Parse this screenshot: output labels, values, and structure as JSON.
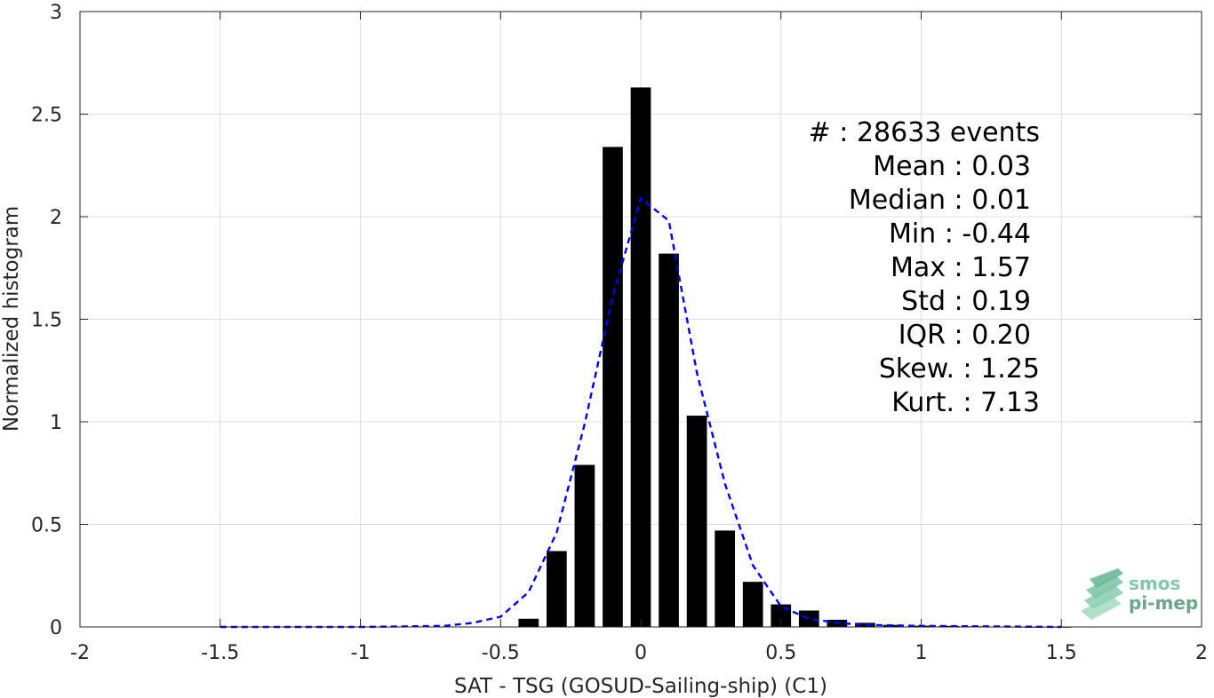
{
  "chart_data": {
    "type": "bar",
    "xlabel": "SAT - TSG (GOSUD-Sailing-ship) (C1)",
    "ylabel": "Normalized histogram",
    "xlim": [
      -2,
      2
    ],
    "ylim": [
      0,
      3
    ],
    "grid": true,
    "x_ticks": [
      "-2",
      "-1.5",
      "-1",
      "-0.5",
      "0",
      "0.5",
      "1",
      "1.5",
      "2"
    ],
    "y_ticks": [
      "0",
      "0.5",
      "1",
      "1.5",
      "2",
      "2.5",
      "3"
    ],
    "series": [
      {
        "type": "bar",
        "color": "#000000",
        "x": [
          -0.4,
          -0.3,
          -0.2,
          -0.1,
          0.0,
          0.1,
          0.2,
          0.3,
          0.4,
          0.5,
          0.6,
          0.7,
          0.8,
          0.9,
          1.0,
          1.1,
          1.2,
          1.3,
          1.4,
          1.5
        ],
        "values": [
          0.04,
          0.37,
          0.79,
          2.34,
          2.63,
          1.82,
          1.03,
          0.47,
          0.22,
          0.11,
          0.08,
          0.035,
          0.02,
          0.01,
          0.006,
          0.005,
          0.003,
          0.002,
          0.001,
          0.001
        ]
      },
      {
        "type": "line",
        "style": "dashed",
        "color": "#0000ff",
        "x": [
          -1.5,
          -1.0,
          -0.7,
          -0.6,
          -0.5,
          -0.4,
          -0.3,
          -0.2,
          -0.1,
          0.0,
          0.1,
          0.2,
          0.3,
          0.4,
          0.5,
          0.6,
          0.7,
          0.8,
          1.0,
          1.5
        ],
        "values": [
          0.0,
          0.0,
          0.005,
          0.02,
          0.05,
          0.17,
          0.46,
          0.99,
          1.61,
          2.09,
          1.98,
          1.24,
          0.7,
          0.3,
          0.1,
          0.04,
          0.02,
          0.01,
          0.005,
          0.0
        ]
      }
    ],
    "annotations": [
      "#  : 28633 events",
      "Mean : 0.03",
      "Median : 0.01",
      "Min : -0.44",
      "Max : 1.57",
      "Std : 0.19",
      "IQR : 0.20",
      "Skew. : 1.25",
      "Kurt. : 7.13"
    ]
  },
  "logo": {
    "line1": "smos",
    "line2": "pi-mep",
    "color1": "#7fc8a9",
    "color2": "#6aa58c"
  }
}
